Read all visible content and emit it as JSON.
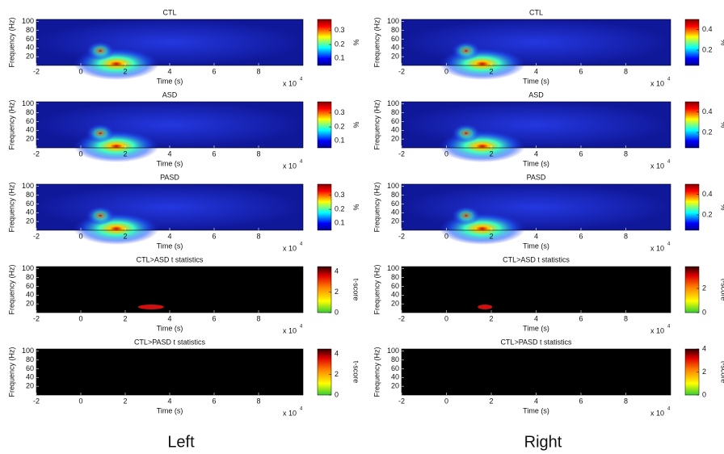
{
  "captions": [
    "Left",
    "Right"
  ],
  "chart_data": [
    {
      "type": "heatmap",
      "title": "CTL",
      "xlabel": "Time (s)",
      "ylabel": "Frequency (Hz)",
      "x_scale": "x 10",
      "x_scale_exponent": "4",
      "xlim": [
        -2,
        10
      ],
      "xticks": [
        -2,
        0,
        2,
        4,
        6,
        8
      ],
      "ylim": [
        0,
        105
      ],
      "yticks": [
        20,
        40,
        60,
        80,
        100
      ],
      "colorbar": {
        "label": "%",
        "colormap": "jet",
        "lim": [
          0.05,
          0.38
        ],
        "ticks": [
          0.1,
          0.2,
          0.3
        ]
      }
    },
    {
      "type": "heatmap",
      "title": "ASD",
      "xlabel": "Time (s)",
      "ylabel": "Frequency (Hz)",
      "x_scale": "x 10",
      "x_scale_exponent": "4",
      "xlim": [
        -2,
        10
      ],
      "xticks": [
        -2,
        0,
        2,
        4,
        6,
        8
      ],
      "ylim": [
        0,
        105
      ],
      "yticks": [
        20,
        40,
        60,
        80,
        100
      ],
      "colorbar": {
        "label": "%",
        "colormap": "jet",
        "lim": [
          0.05,
          0.38
        ],
        "ticks": [
          0.1,
          0.2,
          0.3
        ]
      }
    },
    {
      "type": "heatmap",
      "title": "PASD",
      "xlabel": "Time (s)",
      "ylabel": "Frequency (Hz)",
      "x_scale": "x 10",
      "x_scale_exponent": "4",
      "xlim": [
        -2,
        10
      ],
      "xticks": [
        -2,
        0,
        2,
        4,
        6,
        8
      ],
      "ylim": [
        0,
        105
      ],
      "yticks": [
        20,
        40,
        60,
        80,
        100
      ],
      "colorbar": {
        "label": "%",
        "colormap": "jet",
        "lim": [
          0.05,
          0.38
        ],
        "ticks": [
          0.1,
          0.2,
          0.3
        ]
      }
    },
    {
      "type": "heatmap",
      "title": "CTL>ASD t statistics",
      "xlabel": "Time (s)",
      "ylabel": "Frequency (Hz)",
      "x_scale": "x 10",
      "x_scale_exponent": "4",
      "xlim": [
        -2,
        10
      ],
      "xticks": [
        -2,
        0,
        2,
        4,
        6,
        8
      ],
      "ylim": [
        0,
        105
      ],
      "yticks": [
        20,
        40,
        60,
        80,
        100
      ],
      "colorbar": {
        "label": "t-score",
        "colormap": "tscore",
        "lim": [
          0,
          4.5
        ],
        "ticks": [
          0,
          2,
          4
        ]
      }
    },
    {
      "type": "heatmap",
      "title": "CTL>PASD t statistics",
      "xlabel": "Time (s)",
      "ylabel": "Frequency (Hz)",
      "x_scale": "x 10",
      "x_scale_exponent": "4",
      "xlim": [
        -2,
        10
      ],
      "xticks": [
        -2,
        0,
        2,
        4,
        6,
        8
      ],
      "ylim": [
        0,
        105
      ],
      "yticks": [
        20,
        40,
        60,
        80,
        100
      ],
      "colorbar": {
        "label": "t-score",
        "colormap": "tscore",
        "lim": [
          0,
          4.5
        ],
        "ticks": [
          0,
          2,
          4
        ]
      }
    },
    {
      "type": "heatmap",
      "title": "CTL",
      "xlabel": "Time (s)",
      "ylabel": "Frequency (Hz)",
      "x_scale": "x 10",
      "x_scale_exponent": "4",
      "xlim": [
        -2,
        10
      ],
      "xticks": [
        -2,
        0,
        2,
        4,
        6,
        8
      ],
      "ylim": [
        0,
        105
      ],
      "yticks": [
        20,
        40,
        60,
        80,
        100
      ],
      "colorbar": {
        "label": "%",
        "colormap": "jet",
        "lim": [
          0.05,
          0.5
        ],
        "ticks": [
          0.2,
          0.4
        ]
      }
    },
    {
      "type": "heatmap",
      "title": "ASD",
      "xlabel": "Time (s)",
      "ylabel": "Frequency (Hz)",
      "x_scale": "x 10",
      "x_scale_exponent": "4",
      "xlim": [
        -2,
        10
      ],
      "xticks": [
        -2,
        0,
        2,
        4,
        6,
        8
      ],
      "ylim": [
        0,
        105
      ],
      "yticks": [
        20,
        40,
        60,
        80,
        100
      ],
      "colorbar": {
        "label": "%",
        "colormap": "jet",
        "lim": [
          0.05,
          0.5
        ],
        "ticks": [
          0.2,
          0.4
        ]
      }
    },
    {
      "type": "heatmap",
      "title": "PASD",
      "xlabel": "Time (s)",
      "ylabel": "Frequency (Hz)",
      "x_scale": "x 10",
      "x_scale_exponent": "4",
      "xlim": [
        -2,
        10
      ],
      "xticks": [
        -2,
        0,
        2,
        4,
        6,
        8
      ],
      "ylim": [
        0,
        105
      ],
      "yticks": [
        20,
        40,
        60,
        80,
        100
      ],
      "colorbar": {
        "label": "%",
        "colormap": "jet",
        "lim": [
          0.05,
          0.5
        ],
        "ticks": [
          0.2,
          0.4
        ]
      }
    },
    {
      "type": "heatmap",
      "title": "CTL>ASD t statistics",
      "xlabel": "Time (s)",
      "ylabel": "Frequency (Hz)",
      "x_scale": "x 10",
      "x_scale_exponent": "4",
      "xlim": [
        -2,
        10
      ],
      "xticks": [
        -2,
        0,
        2,
        4,
        6,
        8
      ],
      "ylim": [
        0,
        105
      ],
      "yticks": [
        20,
        40,
        60,
        80,
        100
      ],
      "colorbar": {
        "label": "t-score",
        "colormap": "tscore",
        "lim": [
          0,
          3.8
        ],
        "ticks": [
          0,
          2
        ]
      }
    },
    {
      "type": "heatmap",
      "title": "CTL>PASD t statistics",
      "xlabel": "Time (s)",
      "ylabel": "Frequency (Hz)",
      "x_scale": "x 10",
      "x_scale_exponent": "4",
      "xlim": [
        -2,
        10
      ],
      "xticks": [
        -2,
        0,
        2,
        4,
        6,
        8
      ],
      "ylim": [
        0,
        105
      ],
      "yticks": [
        20,
        40,
        60,
        80,
        100
      ],
      "colorbar": {
        "label": "t-score",
        "colormap": "tscore",
        "lim": [
          0,
          4
        ],
        "ticks": [
          0,
          2,
          4
        ]
      }
    }
  ]
}
